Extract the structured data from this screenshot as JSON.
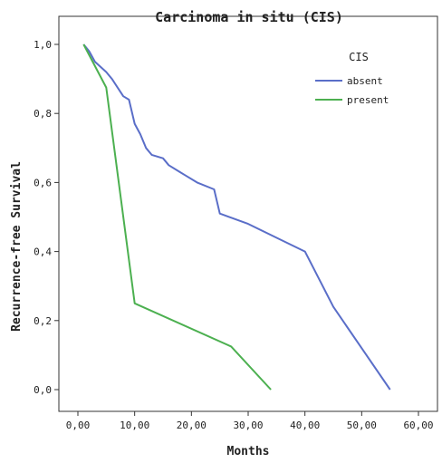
{
  "chart_data": {
    "type": "line",
    "title": "Carcinoma in situ (CIS)",
    "xlabel": "Months",
    "ylabel": "Recurrence-free Survival",
    "xlim": [
      0,
      60
    ],
    "ylim": [
      0,
      1
    ],
    "x_ticks": [
      0,
      10,
      20,
      30,
      40,
      50,
      60
    ],
    "x_tick_labels": [
      "0,00",
      "10,00",
      "20,00",
      "30,00",
      "40,00",
      "50,00",
      "60,00"
    ],
    "y_ticks": [
      0,
      0.2,
      0.4,
      0.6,
      0.8,
      1.0
    ],
    "y_tick_labels": [
      "0,0",
      "0,2",
      "0,4",
      "0,6",
      "0,8",
      "1,0"
    ],
    "grid": false,
    "legend": {
      "title": "CIS",
      "placement": "top-right"
    },
    "series": [
      {
        "name": "absent",
        "color": "#5a6ec8",
        "points": [
          [
            1,
            1.0
          ],
          [
            2,
            0.98
          ],
          [
            3,
            0.95
          ],
          [
            5,
            0.92
          ],
          [
            6,
            0.9
          ],
          [
            8,
            0.85
          ],
          [
            9,
            0.84
          ],
          [
            10,
            0.77
          ],
          [
            11,
            0.74
          ],
          [
            12,
            0.7
          ],
          [
            13,
            0.68
          ],
          [
            15,
            0.67
          ],
          [
            16,
            0.65
          ],
          [
            18,
            0.63
          ],
          [
            19,
            0.62
          ],
          [
            21,
            0.6
          ],
          [
            24,
            0.58
          ],
          [
            25,
            0.51
          ],
          [
            30,
            0.48
          ],
          [
            35,
            0.44
          ],
          [
            40,
            0.4
          ],
          [
            45,
            0.24
          ],
          [
            55,
            0.0
          ]
        ]
      },
      {
        "name": "present",
        "color": "#4cb050",
        "points": [
          [
            1,
            1.0
          ],
          [
            5,
            0.875
          ],
          [
            10,
            0.25
          ],
          [
            27,
            0.125
          ],
          [
            34,
            0.0
          ]
        ]
      }
    ]
  }
}
